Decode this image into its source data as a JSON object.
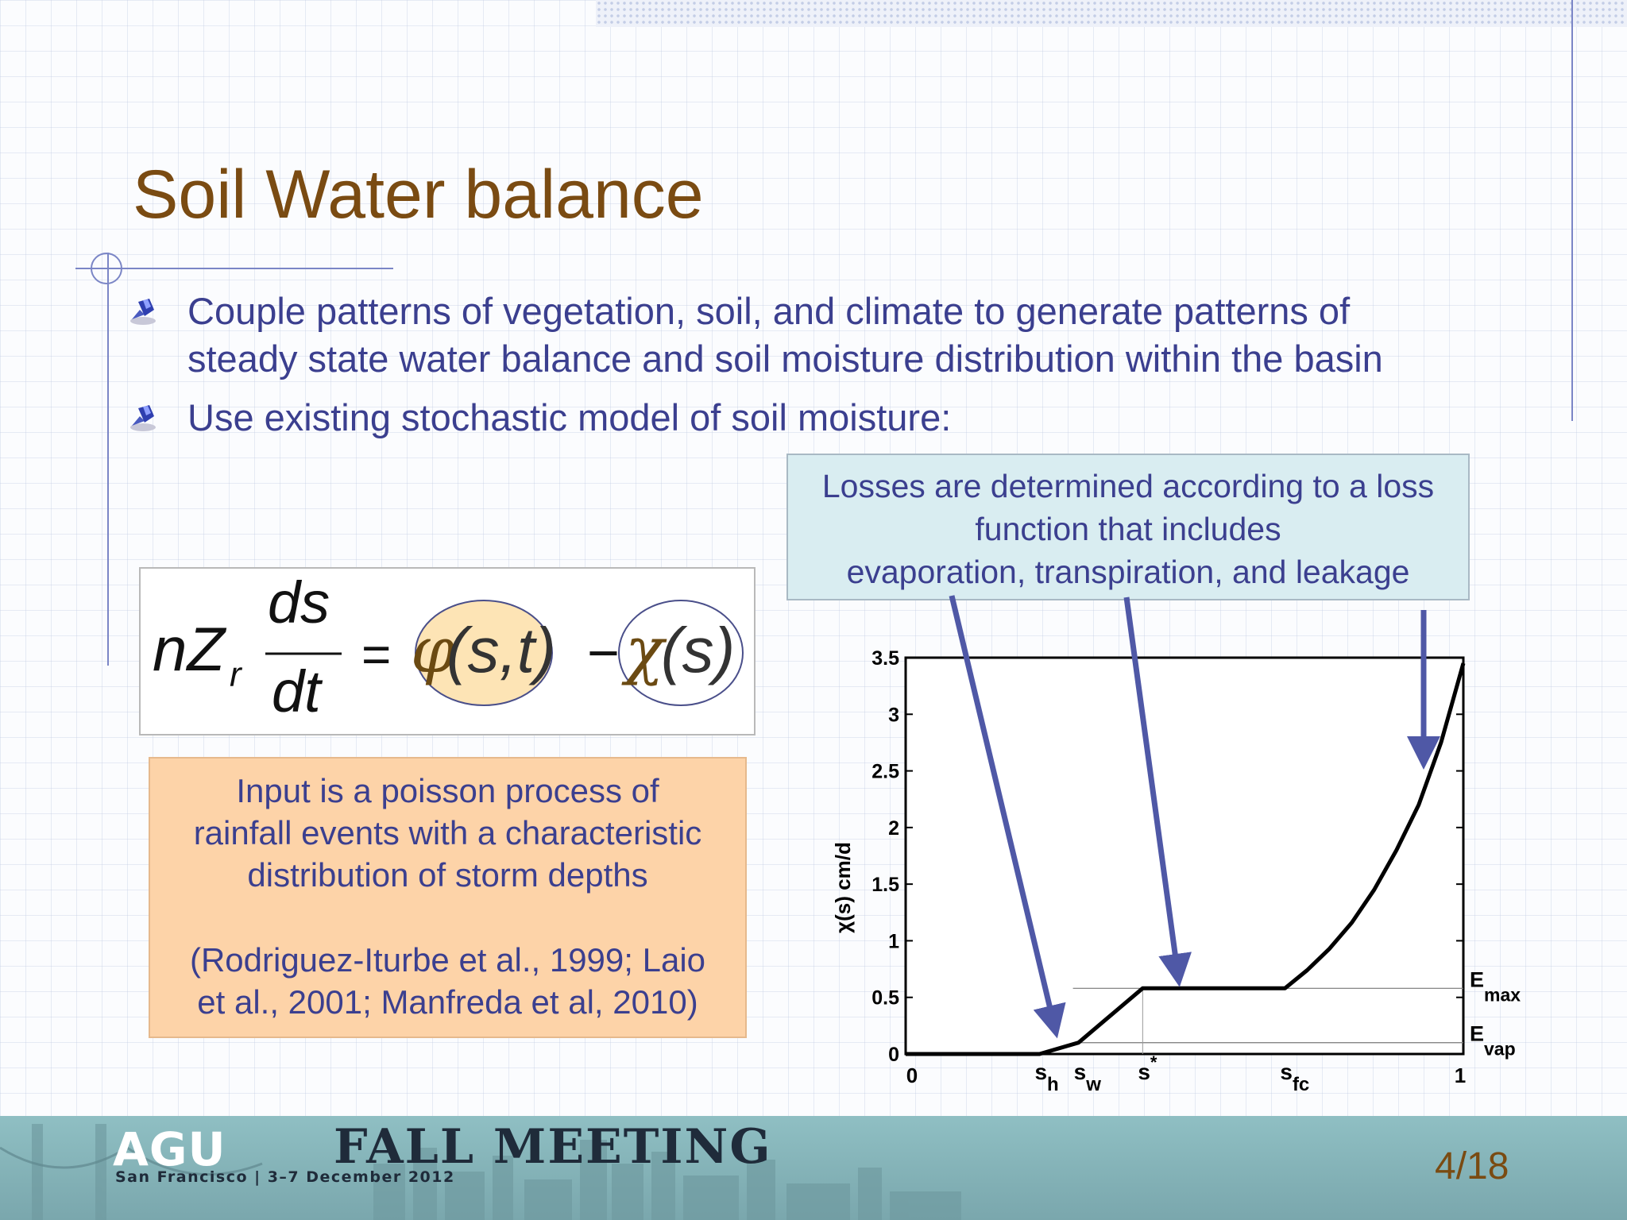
{
  "slide": {
    "title": "Soil Water balance",
    "bullets": [
      {
        "lines": [
          "Couple patterns of vegetation, soil, and climate to generate patterns of",
          "steady state water balance and soil moisture distribution within the basin"
        ]
      },
      {
        "lines": [
          "Use existing stochastic model of soil moisture:"
        ]
      }
    ],
    "bullet_icon": "pushpin-icon",
    "losses_callout": [
      "Losses are determined according to a loss",
      "function that includes",
      "evaporation, transpiration, and leakage"
    ],
    "equation": {
      "lhs_coef": "nZ",
      "lhs_sub": "r",
      "numerator": "ds",
      "denominator": "dt",
      "equals": "=",
      "phi": "φ",
      "phi_args": "(s,t)",
      "minus": "−",
      "chi": "χ",
      "chi_args": "(s)"
    },
    "input_callout": {
      "lines": [
        "Input is a poisson process of",
        "rainfall events with a characteristic",
        "distribution of storm depths"
      ],
      "citation": [
        "(Rodriguez-Iturbe et al., 1999; Laio",
        "et al., 2001; Manfreda et al, 2010)"
      ]
    },
    "slide_number": "4/18",
    "colors": {
      "title": "#7a4b12",
      "body_text": "#3b3f8f",
      "accent_line": "#7b86c6",
      "arrow": "#4f58a6",
      "input_box": "#fdd3a8",
      "losses_box": "#d9edf1",
      "phi_ellipse": "#fde4b5"
    }
  },
  "footer": {
    "logo": "AGU",
    "event": "FALL MEETING",
    "location_date": "San Francisco  |  3–7 December 2012"
  },
  "chart_data": {
    "type": "line",
    "title": "",
    "xlabel": "",
    "ylabel": "χ(s) cm/d",
    "xlim": [
      0,
      1
    ],
    "ylim": [
      0,
      3.5
    ],
    "yticks": [
      "0",
      "0.5",
      "1",
      "1.5",
      "2",
      "2.5",
      "3",
      "3.5"
    ],
    "xtick_labels": [
      "0",
      "1"
    ],
    "x_markers": [
      {
        "label": "s",
        "sub": "h",
        "x": 0.24
      },
      {
        "label": "s",
        "sub": "w",
        "x": 0.31
      },
      {
        "label": "s",
        "sup": "*",
        "x": 0.425
      },
      {
        "label": "s",
        "sub": "fc",
        "x": 0.68
      }
    ],
    "ref_lines": [
      {
        "label": "E",
        "sub": "max",
        "y": 0.58
      },
      {
        "label": "E",
        "sub": "vap",
        "y": 0.1
      }
    ],
    "series": [
      {
        "x": [
          0,
          0.24,
          0.31,
          0.425,
          0.68,
          0.72,
          0.76,
          0.8,
          0.84,
          0.88,
          0.92,
          0.96,
          1.0
        ],
        "y": [
          0,
          0,
          0.1,
          0.58,
          0.58,
          0.74,
          0.93,
          1.16,
          1.45,
          1.8,
          2.2,
          2.75,
          3.45
        ]
      }
    ]
  }
}
